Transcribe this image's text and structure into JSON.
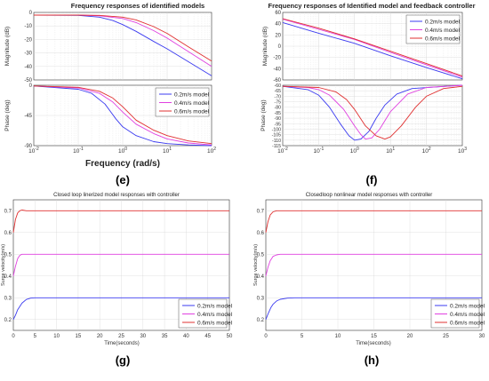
{
  "figure_labels": [
    "(e)",
    "(f)",
    "(g)",
    "(h)"
  ],
  "colors": {
    "s02": "#3b3bf0",
    "s04": "#e040e0",
    "s06": "#e03030",
    "grid": "#d8d8d8",
    "axis": "#333333"
  },
  "chart_data": [
    {
      "id": "e",
      "type": "line",
      "title": "Frequency responses of identified models",
      "panels": [
        {
          "ylabel": "Magnitude (dB)",
          "xscale": "log",
          "xlim": [
            0.01,
            100
          ],
          "ylim": [
            -50,
            0
          ],
          "yticks": [
            "0",
            "-10",
            "-20",
            "-30",
            "-40",
            "-50"
          ],
          "series": [
            {
              "name": "0.2m/s model",
              "x": [
                0.01,
                0.1,
                0.3,
                0.6,
                1,
                2,
                5,
                10,
                30,
                100
              ],
              "y": [
                -2,
                -2.2,
                -3.5,
                -6,
                -9,
                -14,
                -21.5,
                -27,
                -36.5,
                -47
              ]
            },
            {
              "name": "0.4m/s model",
              "x": [
                0.01,
                0.1,
                0.3,
                1,
                2,
                5,
                10,
                30,
                100
              ],
              "y": [
                -2,
                -2,
                -2.5,
                -4.5,
                -7.5,
                -13.5,
                -19,
                -29,
                -40
              ]
            },
            {
              "name": "0.6m/s model",
              "x": [
                0.01,
                0.1,
                0.3,
                1,
                2,
                5,
                10,
                30,
                100
              ],
              "y": [
                -2,
                -2,
                -2.2,
                -3.5,
                -5.5,
                -10.5,
                -15.5,
                -25.5,
                -36
              ]
            }
          ]
        },
        {
          "ylabel": "Phase (deg)",
          "xlabel": "Frequency  (rad/s)",
          "xscale": "log",
          "xlim": [
            0.01,
            100
          ],
          "ylim": [
            -90,
            0
          ],
          "yticks": [
            "0",
            "-45",
            "-90"
          ],
          "xticks": [
            "10-2",
            "10-1",
            "100",
            "101",
            "102"
          ],
          "legend": "top-right",
          "series": [
            {
              "name": "0.2m/s model",
              "x": [
                0.01,
                0.1,
                0.2,
                0.4,
                0.7,
                1,
                2,
                5,
                10,
                30,
                100
              ],
              "y": [
                -1,
                -6,
                -12,
                -28,
                -50,
                -62,
                -75,
                -84,
                -87,
                -89,
                -90
              ]
            },
            {
              "name": "0.4m/s model",
              "x": [
                0.01,
                0.1,
                0.3,
                0.6,
                1,
                2,
                5,
                10,
                30,
                100
              ],
              "y": [
                -1,
                -4,
                -12,
                -25,
                -40,
                -58,
                -72,
                -80,
                -86,
                -89
              ]
            },
            {
              "name": "0.6m/s model",
              "x": [
                0.01,
                0.1,
                0.3,
                0.6,
                1,
                2,
                5,
                10,
                30,
                100
              ],
              "y": [
                -1,
                -3,
                -9,
                -19,
                -32,
                -52,
                -67,
                -75,
                -83,
                -87
              ]
            }
          ]
        }
      ]
    },
    {
      "id": "f",
      "type": "line",
      "title": "Frequency responses of Identified model and feedback controller",
      "panels": [
        {
          "ylabel": "Magnitude (dB)",
          "xscale": "log",
          "xlim": [
            0.01,
            1000
          ],
          "ylim": [
            -60,
            60
          ],
          "yticks": [
            "60",
            "40",
            "20",
            "0",
            "-20",
            "-40",
            "-60"
          ],
          "legend": "top-right",
          "series": [
            {
              "name": "0.2m/s model",
              "x": [
                0.01,
                0.1,
                1,
                10,
                100,
                1000
              ],
              "y": [
                42,
                23,
                5,
                -17,
                -38,
                -58
              ]
            },
            {
              "name": "0.4m/s model",
              "x": [
                0.01,
                0.1,
                1,
                10,
                100,
                1000
              ],
              "y": [
                48,
                30,
                12,
                -11,
                -33,
                -55
              ]
            },
            {
              "name": "0.6m/s model",
              "x": [
                0.01,
                0.1,
                1,
                10,
                100,
                1000
              ],
              "y": [
                49,
                32,
                13,
                -9,
                -31,
                -53
              ]
            }
          ]
        },
        {
          "ylabel": "Phase (deg)",
          "xscale": "log",
          "xlim": [
            0.01,
            1000
          ],
          "ylim": [
            -115,
            -60
          ],
          "yticks": [
            "-60",
            "-65",
            "-70",
            "-75",
            "-80",
            "-85",
            "-90",
            "-95",
            "-100",
            "-105",
            "-110",
            "-115"
          ],
          "xticks": [
            "10-2",
            "10-1",
            "100",
            "101",
            "102",
            "103"
          ],
          "series": [
            {
              "name": "0.2m/s model",
              "x": [
                0.01,
                0.05,
                0.1,
                0.2,
                0.4,
                0.7,
                1,
                1.5,
                2.5,
                4,
                7,
                15,
                40,
                1000
              ],
              "y": [
                -61,
                -64,
                -69,
                -80,
                -95,
                -106,
                -110,
                -109,
                -102,
                -90,
                -78,
                -68,
                -63,
                -60
              ]
            },
            {
              "name": "0.4m/s model",
              "x": [
                0.01,
                0.05,
                0.1,
                0.2,
                0.5,
                1,
                1.5,
                2,
                3,
                5,
                10,
                30,
                100,
                1000
              ],
              "y": [
                -61,
                -62,
                -64,
                -69,
                -82,
                -97,
                -105,
                -109,
                -108,
                -100,
                -84,
                -68,
                -62,
                -60
              ]
            },
            {
              "name": "0.6m/s model",
              "x": [
                0.01,
                0.1,
                0.3,
                0.6,
                1,
                2,
                4,
                7,
                10,
                20,
                50,
                100,
                300,
                1000
              ],
              "y": [
                -61,
                -62,
                -66,
                -73,
                -82,
                -97,
                -106,
                -109,
                -107,
                -97,
                -80,
                -70,
                -63,
                -61
              ]
            }
          ]
        }
      ]
    },
    {
      "id": "g",
      "type": "line",
      "title": "Closed loop linerized model responses with controller",
      "xlabel": "Time(seconds)",
      "ylabel": "Surge velocity(m/s)",
      "xlim": [
        0,
        50
      ],
      "ylim": [
        0.15,
        0.75
      ],
      "xticks": [
        "0",
        "5",
        "10",
        "15",
        "20",
        "25",
        "30",
        "35",
        "40",
        "45",
        "50"
      ],
      "yticks": [
        "0.2",
        "0.3",
        "0.4",
        "0.5",
        "0.6",
        "0.7"
      ],
      "legend": "bottom-right",
      "series": [
        {
          "name": "0.2m/s model",
          "x": [
            0,
            0.5,
            1,
            2,
            3,
            4,
            5,
            6,
            8,
            50
          ],
          "y": [
            0.2,
            0.22,
            0.245,
            0.275,
            0.292,
            0.298,
            0.3,
            0.3,
            0.3,
            0.3
          ]
        },
        {
          "name": "0.4m/s model",
          "x": [
            0,
            0.5,
            1,
            1.5,
            2,
            3,
            5,
            50
          ],
          "y": [
            0.4,
            0.445,
            0.48,
            0.495,
            0.5,
            0.5,
            0.5,
            0.5
          ]
        },
        {
          "name": "0.6m/s model",
          "x": [
            0,
            0.5,
            1,
            1.5,
            2,
            3,
            5,
            50
          ],
          "y": [
            0.6,
            0.66,
            0.69,
            0.7,
            0.703,
            0.7,
            0.7,
            0.7
          ]
        }
      ]
    },
    {
      "id": "h",
      "type": "line",
      "title": "Closedloop nonlinear model responses with controller",
      "xlabel": "Time(seconds)",
      "ylabel": "Surge velocity(m/s)",
      "xlim": [
        0,
        30
      ],
      "ylim": [
        0.15,
        0.75
      ],
      "xticks": [
        "0",
        "5",
        "10",
        "15",
        "20",
        "25",
        "30"
      ],
      "yticks": [
        "0.2",
        "0.3",
        "0.4",
        "0.5",
        "0.6",
        "0.7"
      ],
      "legend": "bottom-right",
      "series": [
        {
          "name": "0.2m/s model",
          "x": [
            0,
            0.3,
            0.7,
            1,
            1.5,
            2,
            3,
            4,
            6,
            30
          ],
          "y": [
            0.2,
            0.225,
            0.255,
            0.27,
            0.285,
            0.293,
            0.298,
            0.3,
            0.3,
            0.3
          ]
        },
        {
          "name": "0.4m/s model",
          "x": [
            0,
            0.3,
            0.6,
            1,
            1.5,
            2,
            3,
            30
          ],
          "y": [
            0.4,
            0.44,
            0.47,
            0.49,
            0.497,
            0.5,
            0.5,
            0.5
          ]
        },
        {
          "name": "0.6m/s model",
          "x": [
            0,
            0.3,
            0.6,
            1,
            1.5,
            2,
            3,
            30
          ],
          "y": [
            0.6,
            0.65,
            0.68,
            0.695,
            0.7,
            0.7,
            0.7,
            0.7
          ]
        }
      ]
    }
  ]
}
